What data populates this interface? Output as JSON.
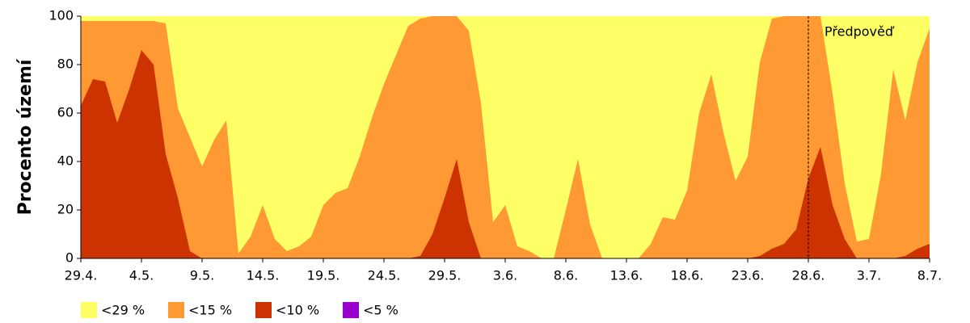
{
  "chart_data": {
    "type": "area",
    "y_label": "Procento území",
    "categories": [
      "29.4.",
      null,
      null,
      null,
      null,
      "4.5.",
      null,
      null,
      null,
      null,
      "9.5.",
      null,
      null,
      null,
      null,
      "14.5.",
      null,
      null,
      null,
      null,
      "19.5.",
      null,
      null,
      null,
      null,
      "24.5.",
      null,
      null,
      null,
      null,
      "29.5.",
      null,
      null,
      null,
      null,
      "3.6.",
      null,
      null,
      null,
      null,
      "8.6.",
      null,
      null,
      null,
      null,
      "13.6.",
      null,
      null,
      null,
      null,
      "18.6.",
      null,
      null,
      null,
      null,
      "23.6.",
      null,
      null,
      null,
      null,
      "28.6.",
      null,
      null,
      null,
      null,
      "3.7.",
      null,
      null,
      null,
      null,
      "8.7."
    ],
    "series": [
      {
        "name": "<29 %",
        "color": "#ffff66",
        "values": [
          100,
          100,
          100,
          100,
          100,
          100,
          100,
          100,
          100,
          100,
          100,
          100,
          100,
          100,
          100,
          100,
          100,
          100,
          100,
          100,
          100,
          100,
          100,
          100,
          100,
          100,
          100,
          100,
          100,
          100,
          100,
          100,
          100,
          100,
          100,
          100,
          100,
          100,
          100,
          100,
          100,
          100,
          100,
          100,
          100,
          100,
          100,
          100,
          100,
          100,
          100,
          100,
          100,
          100,
          100,
          100,
          100,
          100,
          100,
          100,
          100,
          100,
          100,
          100,
          100,
          100,
          100,
          100,
          100,
          100,
          100
        ]
      },
      {
        "name": "<15 %",
        "color": "#ff9933",
        "values": [
          98,
          98,
          98,
          98,
          98,
          98,
          98,
          97,
          62,
          50,
          38,
          49,
          57,
          2,
          9,
          22,
          8,
          3,
          5,
          9,
          22,
          27,
          29,
          42,
          58,
          72,
          84,
          96,
          99,
          100,
          100,
          100,
          94,
          64,
          15,
          22,
          5,
          3,
          0,
          0,
          20,
          41,
          14,
          0,
          0,
          0,
          0,
          6,
          17,
          16,
          28,
          60,
          76,
          52,
          32,
          42,
          81,
          99,
          100,
          100,
          100,
          100,
          68,
          31,
          7,
          8,
          35,
          78,
          57,
          81,
          95
        ]
      },
      {
        "name": "<10 %",
        "color": "#cc3300",
        "values": [
          63,
          74,
          73,
          56,
          70,
          86,
          80,
          43,
          25,
          3,
          0,
          0,
          0,
          0,
          0,
          0,
          0,
          0,
          0,
          0,
          0,
          0,
          0,
          0,
          0,
          0,
          0,
          0,
          1,
          10,
          25,
          41,
          15,
          0,
          0,
          0,
          0,
          0,
          0,
          0,
          0,
          0,
          0,
          0,
          0,
          0,
          0,
          0,
          0,
          0,
          0,
          0,
          0,
          0,
          0,
          0,
          1,
          4,
          6,
          12,
          33,
          46,
          22,
          8,
          0,
          0,
          0,
          0,
          1,
          4,
          6
        ]
      },
      {
        "name": "<5 %",
        "color": "#9900cc",
        "values": [
          0,
          0,
          0,
          0,
          0,
          0,
          0,
          0,
          0,
          0,
          0,
          0,
          0,
          0,
          0,
          0,
          0,
          0,
          0,
          0,
          0,
          0,
          0,
          0,
          0,
          0,
          0,
          0,
          0,
          0,
          0,
          0,
          0,
          0,
          0,
          0,
          0,
          0,
          0,
          0,
          0,
          0,
          0,
          0,
          0,
          0,
          0,
          0,
          0,
          0,
          0,
          0,
          0,
          0,
          0,
          0,
          0,
          0,
          0,
          0,
          0,
          0,
          0,
          0,
          0,
          0,
          0,
          0,
          0,
          0,
          0
        ]
      }
    ],
    "ylim": [
      0,
      100
    ],
    "yticks": [
      0,
      20,
      40,
      60,
      80,
      100
    ],
    "annotation": {
      "text": "Předpověď",
      "x": "28.6."
    }
  }
}
